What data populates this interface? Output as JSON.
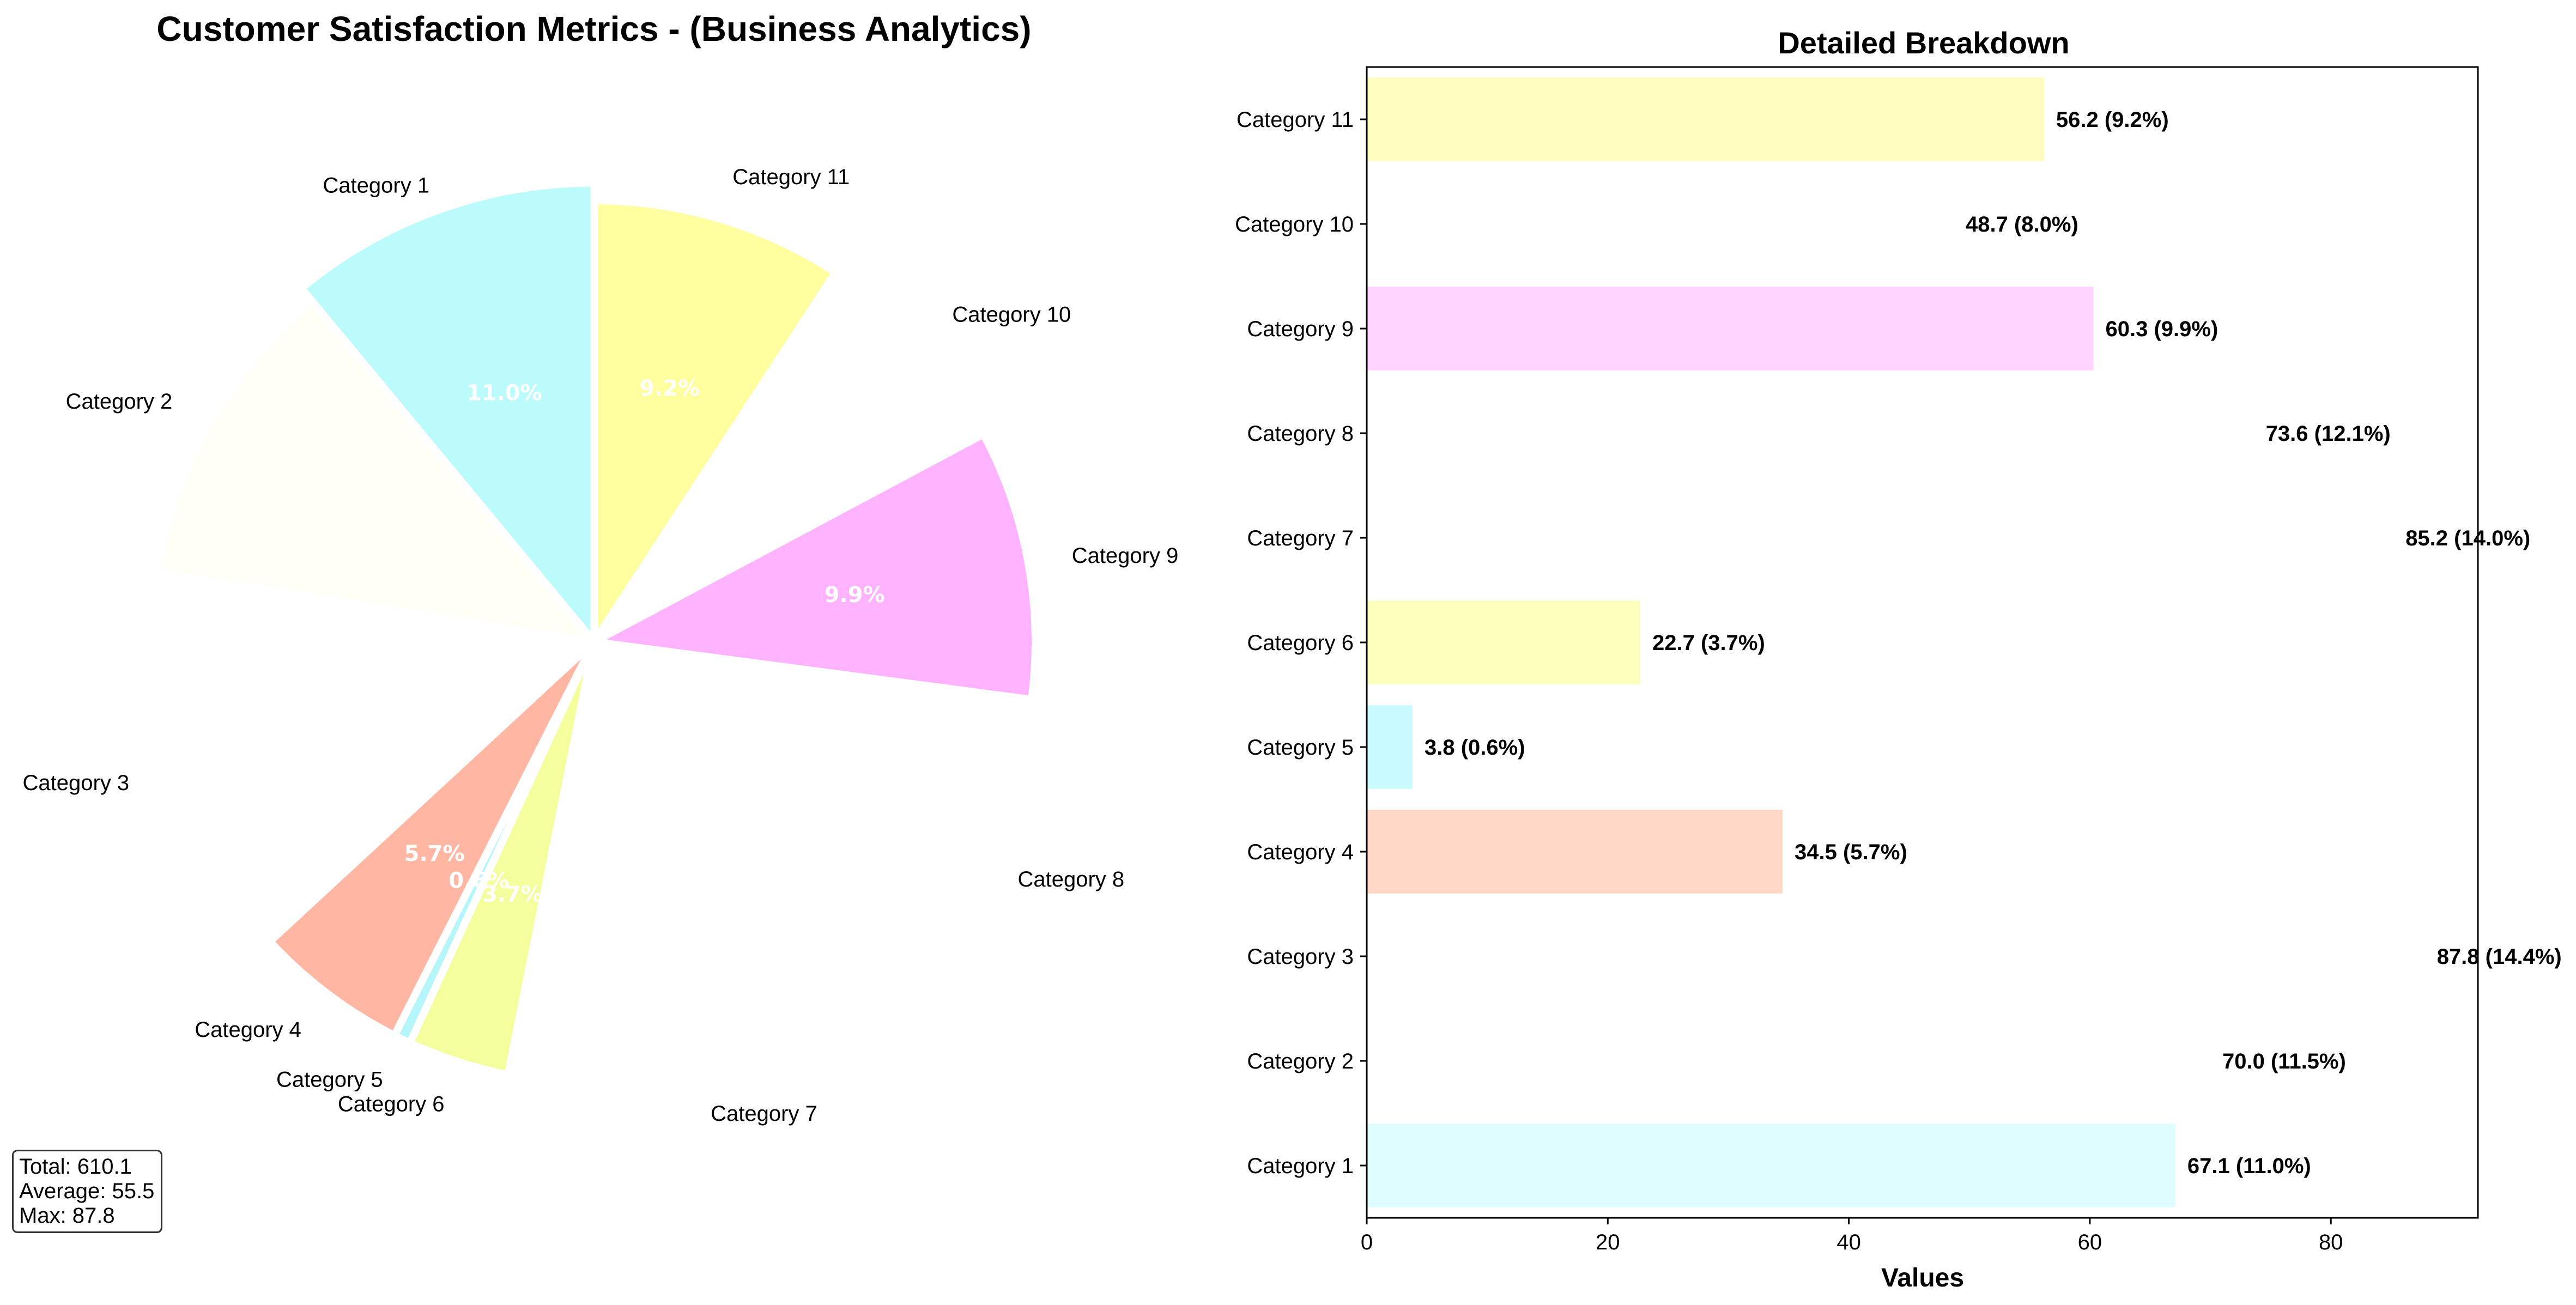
{
  "chart_data": [
    {
      "type": "pie",
      "title": "Customer Satisfaction Metrics - (Business Analytics)",
      "start_angle_deg": 90,
      "direction": "counterclockwise",
      "categories": [
        "Category 1",
        "Category 2",
        "Category 3",
        "Category 4",
        "Category 5",
        "Category 6",
        "Category 7",
        "Category 8",
        "Category 9",
        "Category 10",
        "Category 11"
      ],
      "values": [
        67.1,
        70.0,
        87.8,
        34.5,
        3.8,
        22.7,
        85.2,
        73.6,
        60.3,
        48.7,
        56.2
      ],
      "percent_labels": [
        "11.0%",
        "11.5%",
        "14.4%",
        "5.7%",
        "0.6%",
        "3.7%",
        "14.0%",
        "12.1%",
        "9.9%",
        "8.0%",
        "9.2%"
      ],
      "visible_percent_labels": [
        true,
        false,
        false,
        true,
        true,
        true,
        false,
        false,
        true,
        false,
        true
      ],
      "colors": [
        "#b8fbfc",
        "#fffff5",
        "#ffffff",
        "#ffaa94",
        "#a8f5fa",
        "#f2fe8c",
        "#ffffff",
        "#ffffff",
        "#ffaffe",
        "#ffffff",
        "#ffff9a"
      ],
      "radius_scale": [
        1.04,
        1.0,
        1.0,
        1.0,
        1.0,
        1.0,
        1.0,
        1.0,
        1.0,
        1.0,
        1.0
      ],
      "slice_alpha": [
        0.95,
        0.85,
        0.85,
        0.85,
        0.85,
        0.85,
        0.85,
        0.85,
        0.95,
        0.85,
        0.95
      ],
      "stats": [
        "Total: 610.1",
        "Average: 55.5",
        "Max: 87.8"
      ]
    },
    {
      "type": "bar",
      "orientation": "horizontal",
      "title": "Detailed Breakdown",
      "xlabel": "Values",
      "ylabel": "",
      "xlim": [
        0,
        92.2
      ],
      "xticks": [
        0,
        20,
        40,
        60,
        80
      ],
      "categories": [
        "Category 1",
        "Category 2",
        "Category 3",
        "Category 4",
        "Category 5",
        "Category 6",
        "Category 7",
        "Category 8",
        "Category 9",
        "Category 10",
        "Category 11"
      ],
      "values": [
        67.1,
        70.0,
        87.8,
        34.5,
        3.8,
        22.7,
        85.2,
        73.6,
        60.3,
        48.7,
        56.2
      ],
      "value_labels": [
        "67.1 (11.0%)",
        "70.0 (11.5%)",
        "87.8 (14.4%)",
        "34.5 (5.7%)",
        "3.8 (0.6%)",
        "22.7 (3.7%)",
        "85.2 (14.0%)",
        "73.6 (12.1%)",
        "60.3 (9.9%)",
        "48.7 (8.0%)",
        "56.2 (9.2%)"
      ],
      "colors": [
        "#e0fdfe",
        "#ffffff",
        "#ffffff",
        "#ffd8c8",
        "#c9fbfc",
        "#fbfdba",
        "#ffffff",
        "#ffffff",
        "#ffd5ff",
        "#ffffff",
        "#fefdc0"
      ],
      "grid": false
    }
  ]
}
